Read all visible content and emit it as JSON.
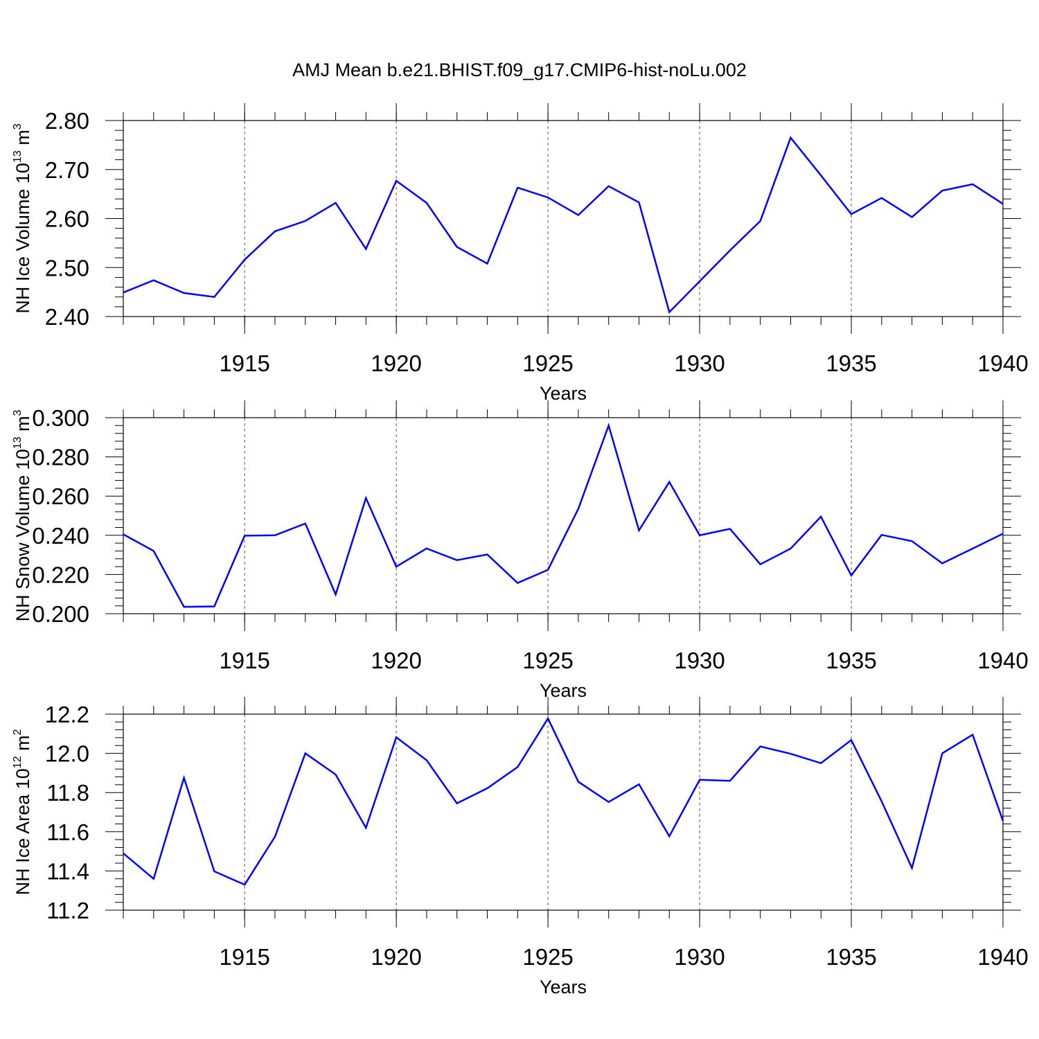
{
  "figure": {
    "title": "AMJ Mean b.e21.BHIST.f09_g17.CMIP6-hist-noLu.002",
    "line_color": "#0000ff"
  },
  "chart_data": [
    {
      "type": "line",
      "ylabel": {
        "text": "NH Ice Volume 10",
        "exponent": "13",
        "unit": " m",
        "unit_exponent": "3"
      },
      "xlabel": "Years",
      "xlim": [
        1911,
        1940
      ],
      "ylim": [
        2.4,
        2.8
      ],
      "yticks": [
        "2.40",
        "2.50",
        "2.60",
        "2.70",
        "2.80"
      ],
      "xticks": [
        "1915",
        "1920",
        "1925",
        "1930",
        "1935",
        "1940"
      ],
      "x": [
        1911,
        1912,
        1913,
        1914,
        1915,
        1916,
        1917,
        1918,
        1919,
        1920,
        1921,
        1922,
        1923,
        1924,
        1925,
        1926,
        1927,
        1928,
        1929,
        1930,
        1931,
        1932,
        1933,
        1934,
        1935,
        1936,
        1937,
        1938,
        1939,
        1940
      ],
      "series": [
        {
          "values": [
            2.449,
            2.474,
            2.448,
            2.44,
            2.516,
            2.574,
            2.595,
            2.632,
            2.538,
            2.677,
            2.632,
            2.542,
            2.508,
            2.663,
            2.643,
            2.607,
            2.666,
            2.633,
            2.409,
            2.472,
            2.535,
            2.595,
            2.765,
            2.688,
            2.609,
            2.642,
            2.603,
            2.657,
            2.67,
            2.63
          ]
        }
      ]
    },
    {
      "type": "line",
      "ylabel": {
        "text": "NH Snow Volume 10",
        "exponent": "13",
        "unit": " m",
        "unit_exponent": "3"
      },
      "xlabel": "Years",
      "xlim": [
        1911,
        1940
      ],
      "ylim": [
        0.2,
        0.3
      ],
      "yticks": [
        "0.200",
        "0.220",
        "0.240",
        "0.260",
        "0.280",
        "0.300"
      ],
      "xticks": [
        "1915",
        "1920",
        "1925",
        "1930",
        "1935",
        "1940"
      ],
      "x": [
        1911,
        1912,
        1913,
        1914,
        1915,
        1916,
        1917,
        1918,
        1919,
        1920,
        1921,
        1922,
        1923,
        1924,
        1925,
        1926,
        1927,
        1928,
        1929,
        1930,
        1931,
        1932,
        1933,
        1934,
        1935,
        1936,
        1937,
        1938,
        1939,
        1940
      ],
      "series": [
        {
          "values": [
            0.2405,
            0.232,
            0.2035,
            0.2037,
            0.2398,
            0.24,
            0.246,
            0.2098,
            0.259,
            0.224,
            0.2333,
            0.2273,
            0.2302,
            0.2157,
            0.2224,
            0.2535,
            0.296,
            0.2425,
            0.2672,
            0.24,
            0.2433,
            0.2252,
            0.2332,
            0.2495,
            0.2195,
            0.2402,
            0.237,
            0.2257,
            0.2332,
            0.2408
          ]
        }
      ]
    },
    {
      "type": "line",
      "ylabel": {
        "text": "NH Ice Area 10",
        "exponent": "12",
        "unit": " m",
        "unit_exponent": "2"
      },
      "xlabel": "Years",
      "xlim": [
        1911,
        1940
      ],
      "ylim": [
        11.2,
        12.2
      ],
      "yticks": [
        "11.2",
        "11.4",
        "11.6",
        "11.8",
        "12.0",
        "12.2"
      ],
      "xticks": [
        "1915",
        "1920",
        "1925",
        "1930",
        "1935",
        "1940"
      ],
      "x": [
        1911,
        1912,
        1913,
        1914,
        1915,
        1916,
        1917,
        1918,
        1919,
        1920,
        1921,
        1922,
        1923,
        1924,
        1925,
        1926,
        1927,
        1928,
        1929,
        1930,
        1931,
        1932,
        1933,
        1934,
        1935,
        1936,
        1937,
        1938,
        1939,
        1940
      ],
      "series": [
        {
          "values": [
            11.49,
            11.36,
            11.875,
            11.398,
            11.33,
            11.575,
            12.0,
            11.892,
            11.62,
            12.082,
            11.965,
            11.745,
            11.822,
            11.93,
            12.178,
            11.855,
            11.752,
            11.842,
            11.577,
            11.865,
            11.86,
            12.035,
            11.998,
            11.95,
            12.068,
            11.755,
            11.415,
            12.0,
            12.095,
            11.655
          ]
        }
      ]
    }
  ]
}
